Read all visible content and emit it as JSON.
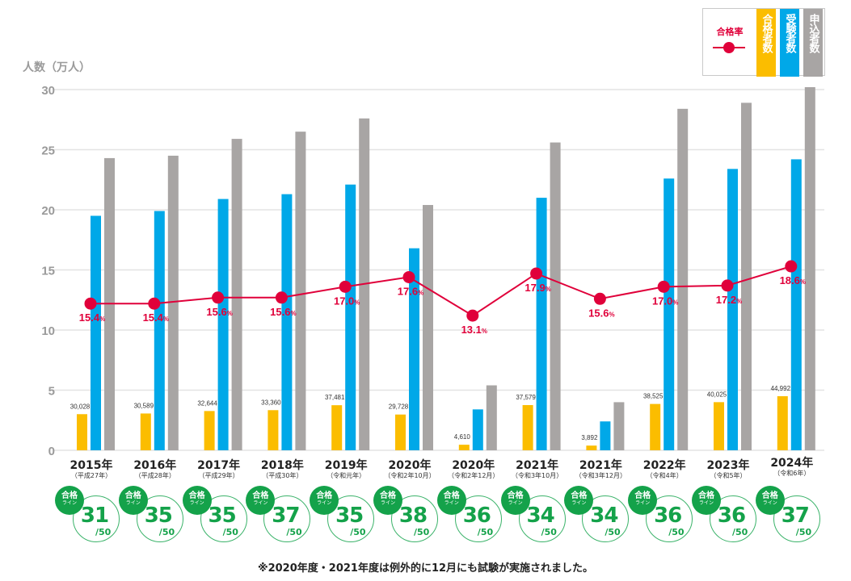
{
  "legend": {
    "rate": "合格率",
    "passers": "合格者数",
    "examinees": "受験者数",
    "applicants": "申込者数"
  },
  "note": "※2020年度・2021年度は例外的に12月にも試験が実施されました。",
  "badge_text": {
    "top": "合格",
    "bottom": "ライン"
  },
  "colors": {
    "passers": "#fbbd00",
    "examinees": "#00a8e8",
    "applicants": "#a8a5a4",
    "rate": "#e0003a",
    "badge": "#14a24a"
  },
  "chart_data": {
    "type": "bar",
    "ylabel": "人数（万人）",
    "ylim": [
      0,
      30
    ],
    "yticks": [
      "0",
      "5",
      "10",
      "15",
      "20",
      "25",
      "30"
    ],
    "grid": true,
    "legend_position": "top-right",
    "categories": [
      {
        "year": "2015年",
        "era": "（平成27年）"
      },
      {
        "year": "2016年",
        "era": "（平成28年）"
      },
      {
        "year": "2017年",
        "era": "（平成29年）"
      },
      {
        "year": "2018年",
        "era": "（平成30年）"
      },
      {
        "year": "2019年",
        "era": "（令和元年）"
      },
      {
        "year": "2020年",
        "era": "（令和2年10月）"
      },
      {
        "year": "2020年",
        "era": "（令和2年12月）"
      },
      {
        "year": "2021年",
        "era": "（令和3年10月）"
      },
      {
        "year": "2021年",
        "era": "（令和3年12月）"
      },
      {
        "year": "2022年",
        "era": "（令和4年）"
      },
      {
        "year": "2023年",
        "era": "（令和5年）"
      },
      {
        "year": "2024年",
        "era": "（令和6年）"
      }
    ],
    "series": [
      {
        "name": "合格者数",
        "values": [
          3.0028,
          3.0589,
          3.2644,
          3.336,
          3.7481,
          2.9728,
          0.461,
          3.7579,
          0.3892,
          3.8525,
          4.0025,
          4.4992
        ],
        "labels": [
          "30,028",
          "30,589",
          "32,644",
          "33,360",
          "37,481",
          "29,728",
          "4,610",
          "37,579",
          "3,892",
          "38,525",
          "40,025",
          "44,992"
        ]
      },
      {
        "name": "受験者数",
        "values": [
          19.5,
          19.9,
          20.9,
          21.3,
          22.1,
          16.8,
          3.4,
          21.0,
          2.4,
          22.6,
          23.4,
          24.2
        ]
      },
      {
        "name": "申込者数",
        "values": [
          24.3,
          24.5,
          25.9,
          26.5,
          27.6,
          20.4,
          5.4,
          25.6,
          4.0,
          28.4,
          28.9,
          30.2
        ]
      }
    ],
    "rate": {
      "name": "合格率",
      "values": [
        15.4,
        15.4,
        15.6,
        15.6,
        17.0,
        17.6,
        13.1,
        17.9,
        15.6,
        17.0,
        17.2,
        18.6
      ],
      "labels": [
        "15.4",
        "15.4",
        "15.6",
        "15.6",
        "17.0",
        "17.6",
        "13.1",
        "17.9",
        "15.6",
        "17.0",
        "17.2",
        "18.6"
      ],
      "unit": "%",
      "plotted": [
        12.2,
        12.2,
        12.7,
        12.7,
        13.6,
        14.4,
        11.2,
        14.7,
        12.6,
        13.6,
        13.7,
        15.3
      ]
    },
    "pass_line": {
      "values": [
        "31",
        "35",
        "35",
        "37",
        "35",
        "38",
        "36",
        "34",
        "34",
        "36",
        "36",
        "37"
      ],
      "denominator": "/50"
    }
  }
}
